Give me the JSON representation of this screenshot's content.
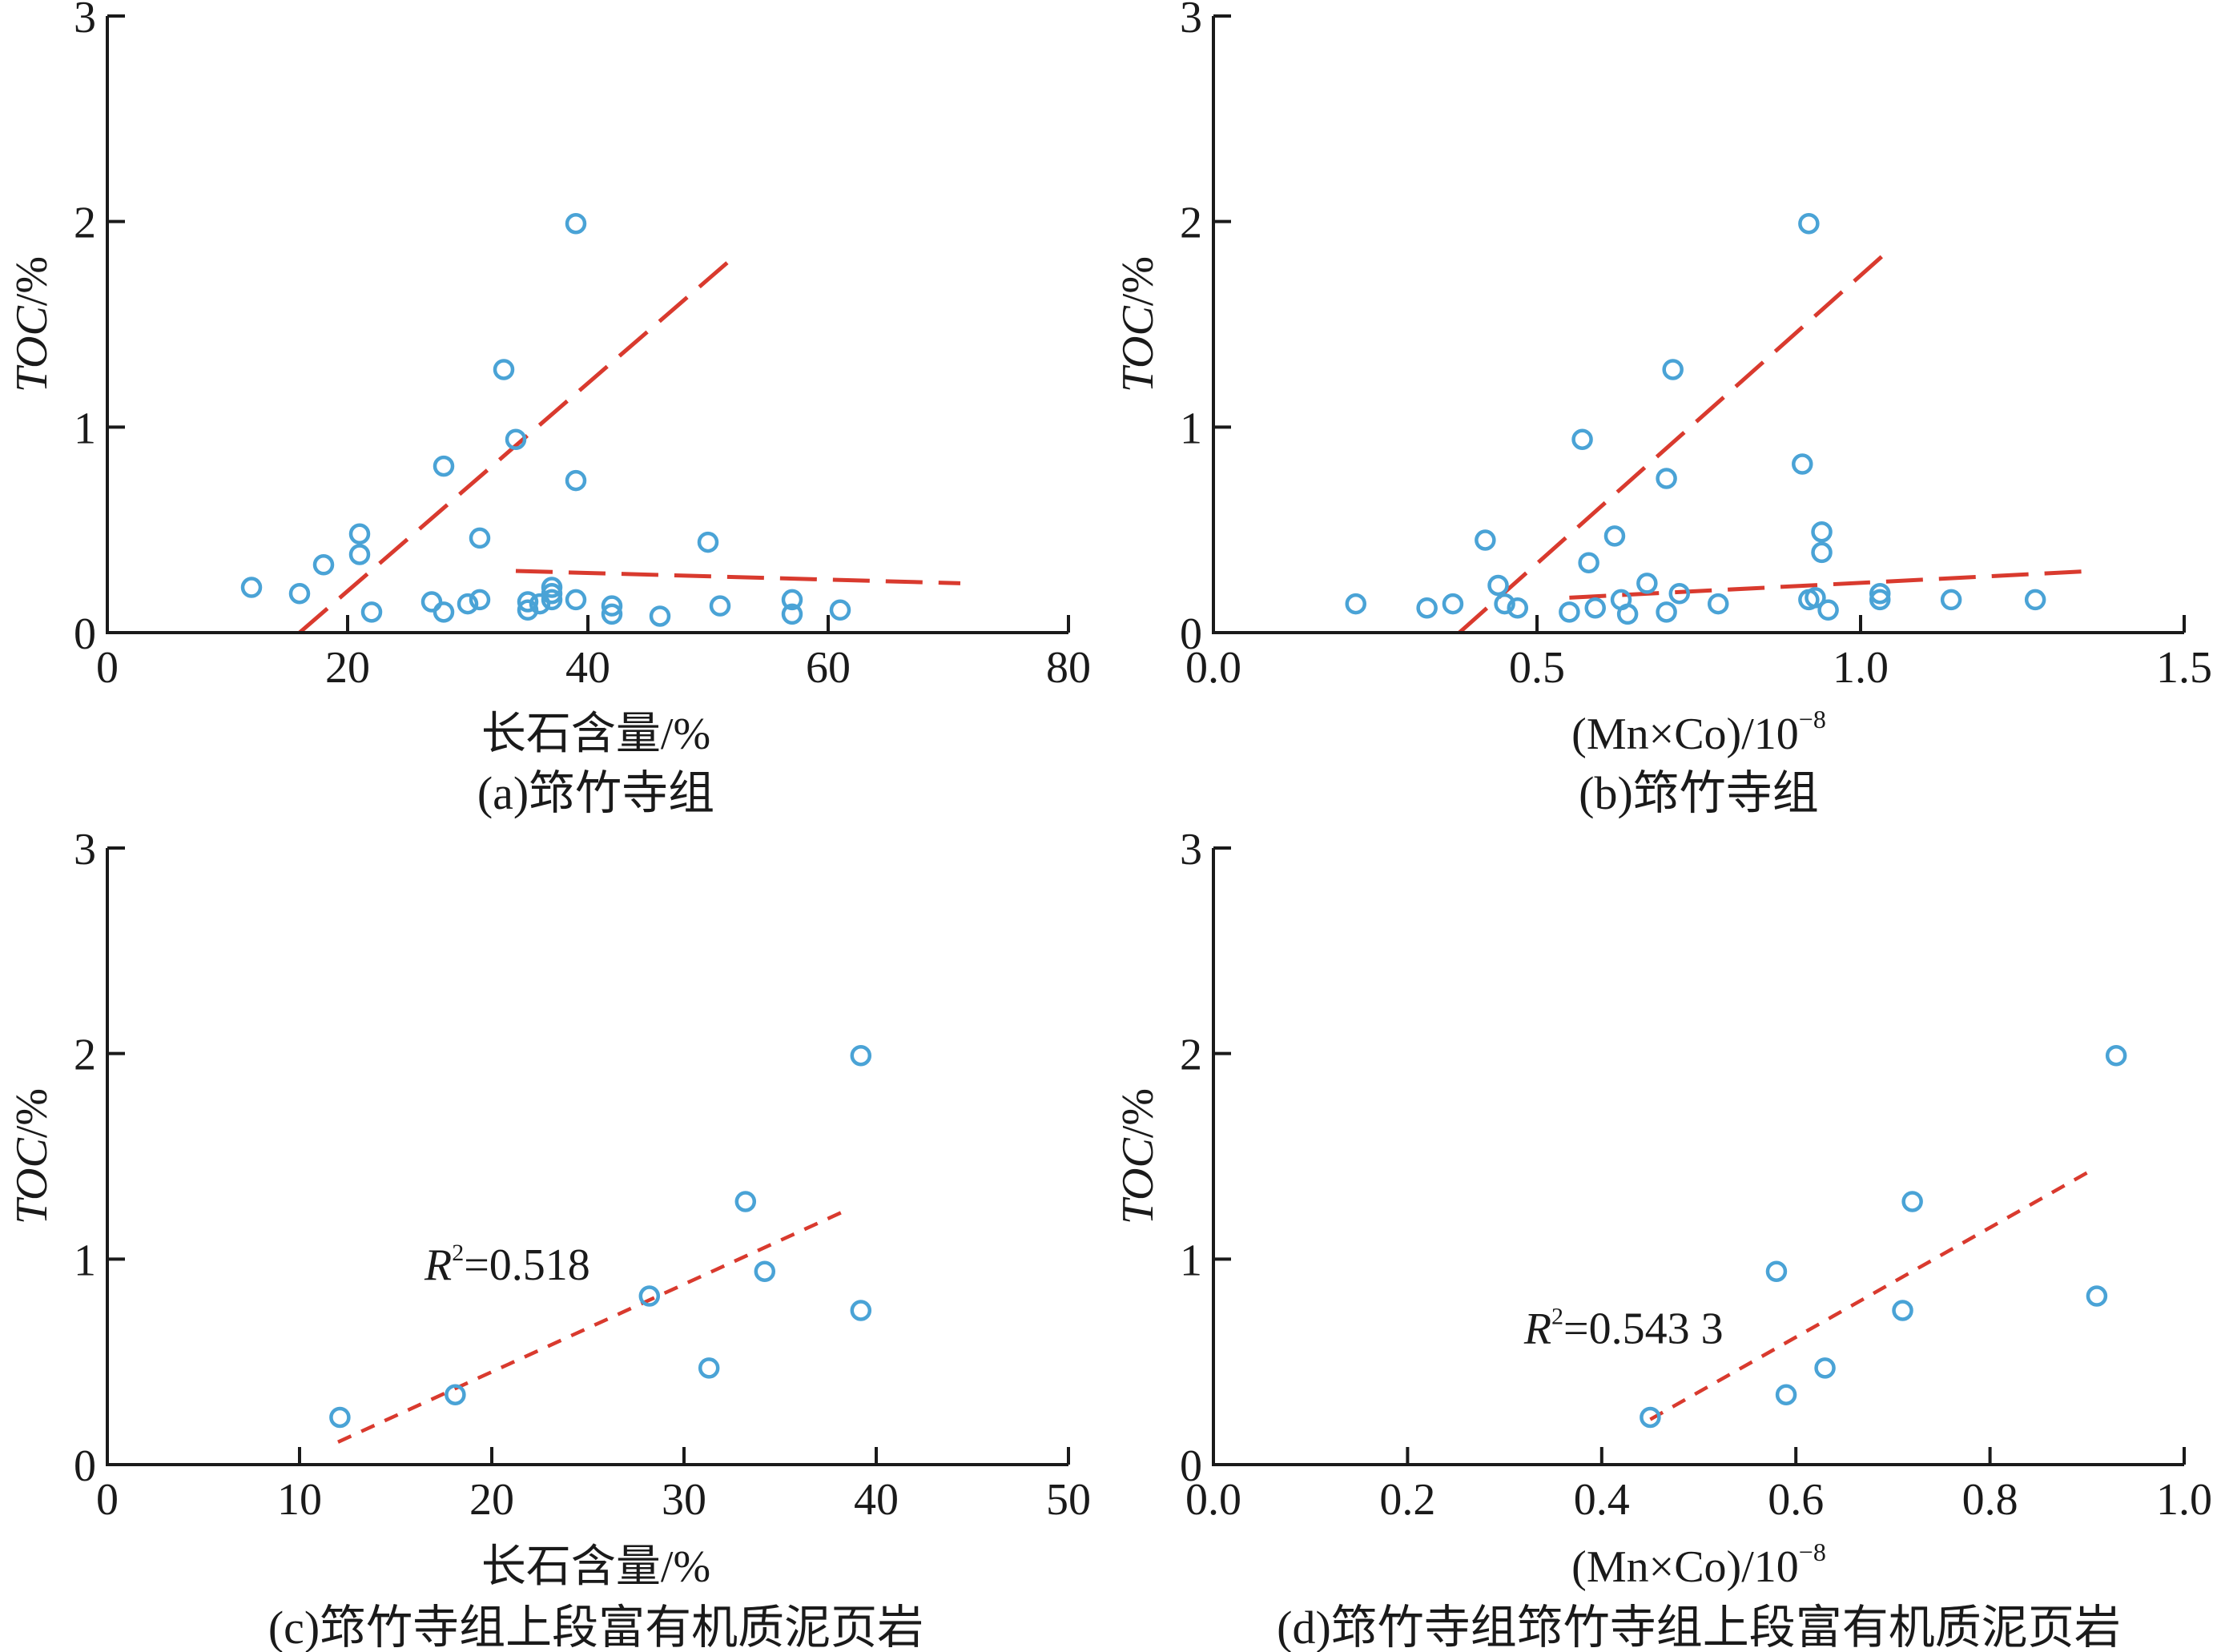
{
  "colors": {
    "points": "#4aa3d6",
    "trend": "#d93a2e",
    "axis": "#1a1a1a"
  },
  "chart_data": [
    {
      "type": "scatter",
      "panel": "a",
      "caption": "(a)筇竹寺组",
      "xlabel": "长石含量/%",
      "ylabel_main": "TOC",
      "ylabel_unit": "/%",
      "xlim": [
        0,
        80
      ],
      "ylim": [
        0,
        3
      ],
      "xticks": [
        0,
        20,
        40,
        60,
        80
      ],
      "xtick_labels": [
        "0",
        "20",
        "40",
        "60",
        "80"
      ],
      "yticks": [
        0,
        1,
        2,
        3
      ],
      "ytick_labels": [
        "0",
        "1",
        "2",
        "3"
      ],
      "points": [
        [
          12,
          0.22
        ],
        [
          16,
          0.19
        ],
        [
          18,
          0.33
        ],
        [
          21,
          0.48
        ],
        [
          21,
          0.38
        ],
        [
          22,
          0.1
        ],
        [
          27,
          0.15
        ],
        [
          28,
          0.1
        ],
        [
          28,
          0.81
        ],
        [
          30,
          0.14
        ],
        [
          31,
          0.16
        ],
        [
          31,
          0.46
        ],
        [
          33,
          1.28
        ],
        [
          34,
          0.94
        ],
        [
          35,
          0.15
        ],
        [
          35,
          0.11
        ],
        [
          36,
          0.14
        ],
        [
          37,
          0.22
        ],
        [
          37,
          0.19
        ],
        [
          37,
          0.16
        ],
        [
          39,
          1.99
        ],
        [
          39,
          0.74
        ],
        [
          39,
          0.16
        ],
        [
          42,
          0.13
        ],
        [
          42,
          0.09
        ],
        [
          46,
          0.08
        ],
        [
          50,
          0.44
        ],
        [
          51,
          0.13
        ],
        [
          57,
          0.16
        ],
        [
          57,
          0.09
        ],
        [
          61,
          0.11
        ]
      ],
      "trendlines": [
        {
          "from": [
            16,
            0.0
          ],
          "to": [
            52,
            1.82
          ],
          "style": "long-dash"
        },
        {
          "from": [
            34,
            0.3
          ],
          "to": [
            71,
            0.24
          ],
          "style": "long-dash"
        }
      ]
    },
    {
      "type": "scatter",
      "panel": "b",
      "caption": "(b)筇竹寺组",
      "xlabel_main": "(Mn×Co)/10",
      "xlabel_exp": "−8",
      "ylabel_main": "TOC",
      "ylabel_unit": "/%",
      "xlim": [
        0,
        1.5
      ],
      "ylim": [
        0,
        3
      ],
      "xticks": [
        0,
        0.5,
        1.0,
        1.5
      ],
      "xtick_labels": [
        "0.0",
        "0.5",
        "1.0",
        "1.5"
      ],
      "yticks": [
        0,
        1,
        2,
        3
      ],
      "ytick_labels": [
        "0",
        "1",
        "2",
        "3"
      ],
      "points": [
        [
          0.22,
          0.14
        ],
        [
          0.33,
          0.12
        ],
        [
          0.37,
          0.14
        ],
        [
          0.42,
          0.45
        ],
        [
          0.44,
          0.23
        ],
        [
          0.45,
          0.14
        ],
        [
          0.47,
          0.12
        ],
        [
          0.55,
          0.1
        ],
        [
          0.57,
          0.94
        ],
        [
          0.58,
          0.34
        ],
        [
          0.59,
          0.12
        ],
        [
          0.62,
          0.47
        ],
        [
          0.63,
          0.16
        ],
        [
          0.64,
          0.09
        ],
        [
          0.67,
          0.24
        ],
        [
          0.7,
          0.1
        ],
        [
          0.7,
          0.75
        ],
        [
          0.71,
          1.28
        ],
        [
          0.72,
          0.19
        ],
        [
          0.78,
          0.14
        ],
        [
          0.91,
          0.82
        ],
        [
          0.92,
          1.99
        ],
        [
          0.92,
          0.16
        ],
        [
          0.93,
          0.17
        ],
        [
          0.94,
          0.49
        ],
        [
          0.94,
          0.39
        ],
        [
          0.95,
          0.11
        ],
        [
          1.03,
          0.16
        ],
        [
          1.03,
          0.19
        ],
        [
          1.14,
          0.16
        ],
        [
          1.27,
          0.16
        ]
      ],
      "trendlines": [
        {
          "from": [
            0.38,
            0.0
          ],
          "to": [
            1.04,
            1.85
          ],
          "style": "long-dash"
        },
        {
          "from": [
            0.55,
            0.17
          ],
          "to": [
            1.36,
            0.3
          ],
          "style": "long-dash"
        }
      ]
    },
    {
      "type": "scatter",
      "panel": "c",
      "caption": "(c)筇竹寺组上段富有机质泥页岩",
      "xlabel": "长石含量/%",
      "ylabel_main": "TOC",
      "ylabel_unit": "/%",
      "xlim": [
        0,
        50
      ],
      "ylim": [
        0,
        3
      ],
      "xticks": [
        0,
        10,
        20,
        30,
        40,
        50
      ],
      "xtick_labels": [
        "0",
        "10",
        "20",
        "30",
        "40",
        "50"
      ],
      "yticks": [
        0,
        1,
        2,
        3
      ],
      "ytick_labels": [
        "0",
        "1",
        "2",
        "3"
      ],
      "points": [
        [
          12.1,
          0.23
        ],
        [
          18.1,
          0.34
        ],
        [
          28.2,
          0.82
        ],
        [
          31.3,
          0.47
        ],
        [
          33.2,
          1.28
        ],
        [
          34.2,
          0.94
        ],
        [
          39.2,
          1.99
        ],
        [
          39.2,
          0.75
        ]
      ],
      "trendlines": [
        {
          "from": [
            12,
            0.11
          ],
          "to": [
            38.5,
            1.24
          ],
          "style": "short-dash"
        }
      ],
      "annotation": {
        "r_letter": "R",
        "r_exp": "2",
        "text": "=0.518",
        "at": [
          16.5,
          0.9
        ]
      }
    },
    {
      "type": "scatter",
      "panel": "d",
      "caption": "(d)筇竹寺组筇竹寺组上段富有机质泥页岩",
      "xlabel_main": "(Mn×Co)/10",
      "xlabel_exp": "−8",
      "ylabel_main": "TOC",
      "ylabel_unit": "/%",
      "xlim": [
        0,
        1.0
      ],
      "ylim": [
        0,
        3
      ],
      "xticks": [
        0,
        0.2,
        0.4,
        0.6,
        0.8,
        1.0
      ],
      "xtick_labels": [
        "0.0",
        "0.2",
        "0.4",
        "0.6",
        "0.8",
        "1.0"
      ],
      "yticks": [
        0,
        1,
        2,
        3
      ],
      "ytick_labels": [
        "0",
        "1",
        "2",
        "3"
      ],
      "points": [
        [
          0.45,
          0.23
        ],
        [
          0.58,
          0.94
        ],
        [
          0.59,
          0.34
        ],
        [
          0.63,
          0.47
        ],
        [
          0.71,
          0.75
        ],
        [
          0.72,
          1.28
        ],
        [
          0.91,
          0.82
        ],
        [
          0.93,
          1.99
        ]
      ],
      "trendlines": [
        {
          "from": [
            0.45,
            0.22
          ],
          "to": [
            0.9,
            1.42
          ],
          "style": "short-dash"
        }
      ],
      "annotation": {
        "r_letter": "R",
        "r_exp": "2",
        "text": "=0.543 3",
        "at": [
          0.32,
          0.59
        ]
      }
    }
  ]
}
